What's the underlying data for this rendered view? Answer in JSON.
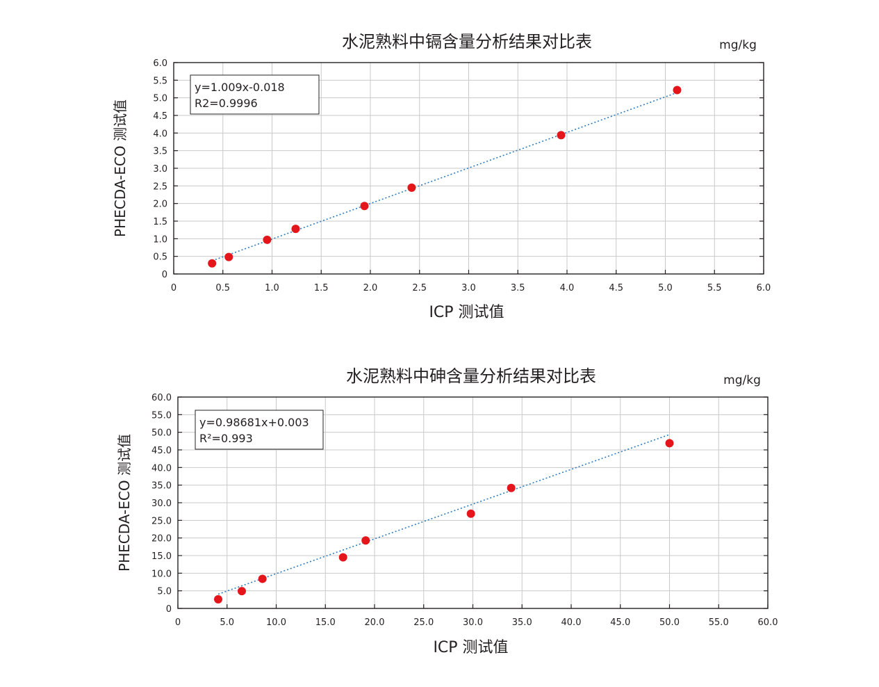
{
  "chart_data": [
    {
      "type": "scatter",
      "title": "水泥熟料中镉含量分析结果对比表",
      "unit": "mg/kg",
      "xlabel": "ICP 测试值",
      "ylabel": "PHECDA-ECO 测试值",
      "xlim": [
        0,
        6.0
      ],
      "ylim": [
        0,
        6.0
      ],
      "xticks": [
        "0",
        "0.5",
        "1.0",
        "1.5",
        "2.0",
        "2.5",
        "3.0",
        "3.5",
        "4.0",
        "4.5",
        "5.0",
        "5.5",
        "6.0"
      ],
      "yticks": [
        "0",
        "0.5",
        "1.0",
        "1.5",
        "2.0",
        "2.5",
        "3.0",
        "3.5",
        "4.0",
        "4.5",
        "5.0",
        "5.5",
        "6.0"
      ],
      "grid": true,
      "legend": {
        "position": "top-left",
        "lines": [
          "y=1.009x-0.018",
          "R2=0.9996"
        ]
      },
      "fit": {
        "slope": 1.009,
        "intercept": -0.018
      },
      "series": [
        {
          "points": [
            [
              0.39,
              0.3
            ],
            [
              0.56,
              0.48
            ],
            [
              0.95,
              0.97
            ],
            [
              1.24,
              1.28
            ],
            [
              1.94,
              1.93
            ],
            [
              2.42,
              2.45
            ],
            [
              3.94,
              3.94
            ],
            [
              5.12,
              5.22
            ]
          ]
        }
      ],
      "colors": {
        "point": "#e4151b",
        "fit_line": "#2a7bc0",
        "grid": "#c9c9c9",
        "frame": "#231f20"
      }
    },
    {
      "type": "scatter",
      "title": "水泥熟料中砷含量分析结果对比表",
      "unit": "mg/kg",
      "xlabel": "ICP 测试值",
      "ylabel": "PHECDA-ECO 测试值",
      "xlim": [
        0,
        60.0
      ],
      "ylim": [
        0,
        60.0
      ],
      "xticks": [
        "0",
        "5.0",
        "10.0",
        "15.0",
        "20.0",
        "25.0",
        "30.0",
        "35.0",
        "40.0",
        "45.0",
        "50.0",
        "55.0",
        "60.0"
      ],
      "yticks": [
        "0",
        "5.0",
        "10.0",
        "15.0",
        "20.0",
        "25.0",
        "30.0",
        "35.0",
        "40.0",
        "45.0",
        "50.0",
        "55.0",
        "60.0"
      ],
      "grid": true,
      "legend": {
        "position": "top-left",
        "lines": [
          "y=0.98681x+0.003",
          "R²=0.993"
        ]
      },
      "fit": {
        "slope": 0.98681,
        "intercept": 0.003
      },
      "series": [
        {
          "points": [
            [
              4.1,
              2.6
            ],
            [
              6.5,
              4.9
            ],
            [
              8.6,
              8.4
            ],
            [
              16.8,
              14.5
            ],
            [
              19.1,
              19.3
            ],
            [
              29.8,
              26.9
            ],
            [
              33.9,
              34.2
            ],
            [
              50.0,
              46.9
            ]
          ]
        }
      ],
      "colors": {
        "point": "#e4151b",
        "fit_line": "#2a7bc0",
        "grid": "#c9c9c9",
        "frame": "#231f20"
      }
    }
  ]
}
